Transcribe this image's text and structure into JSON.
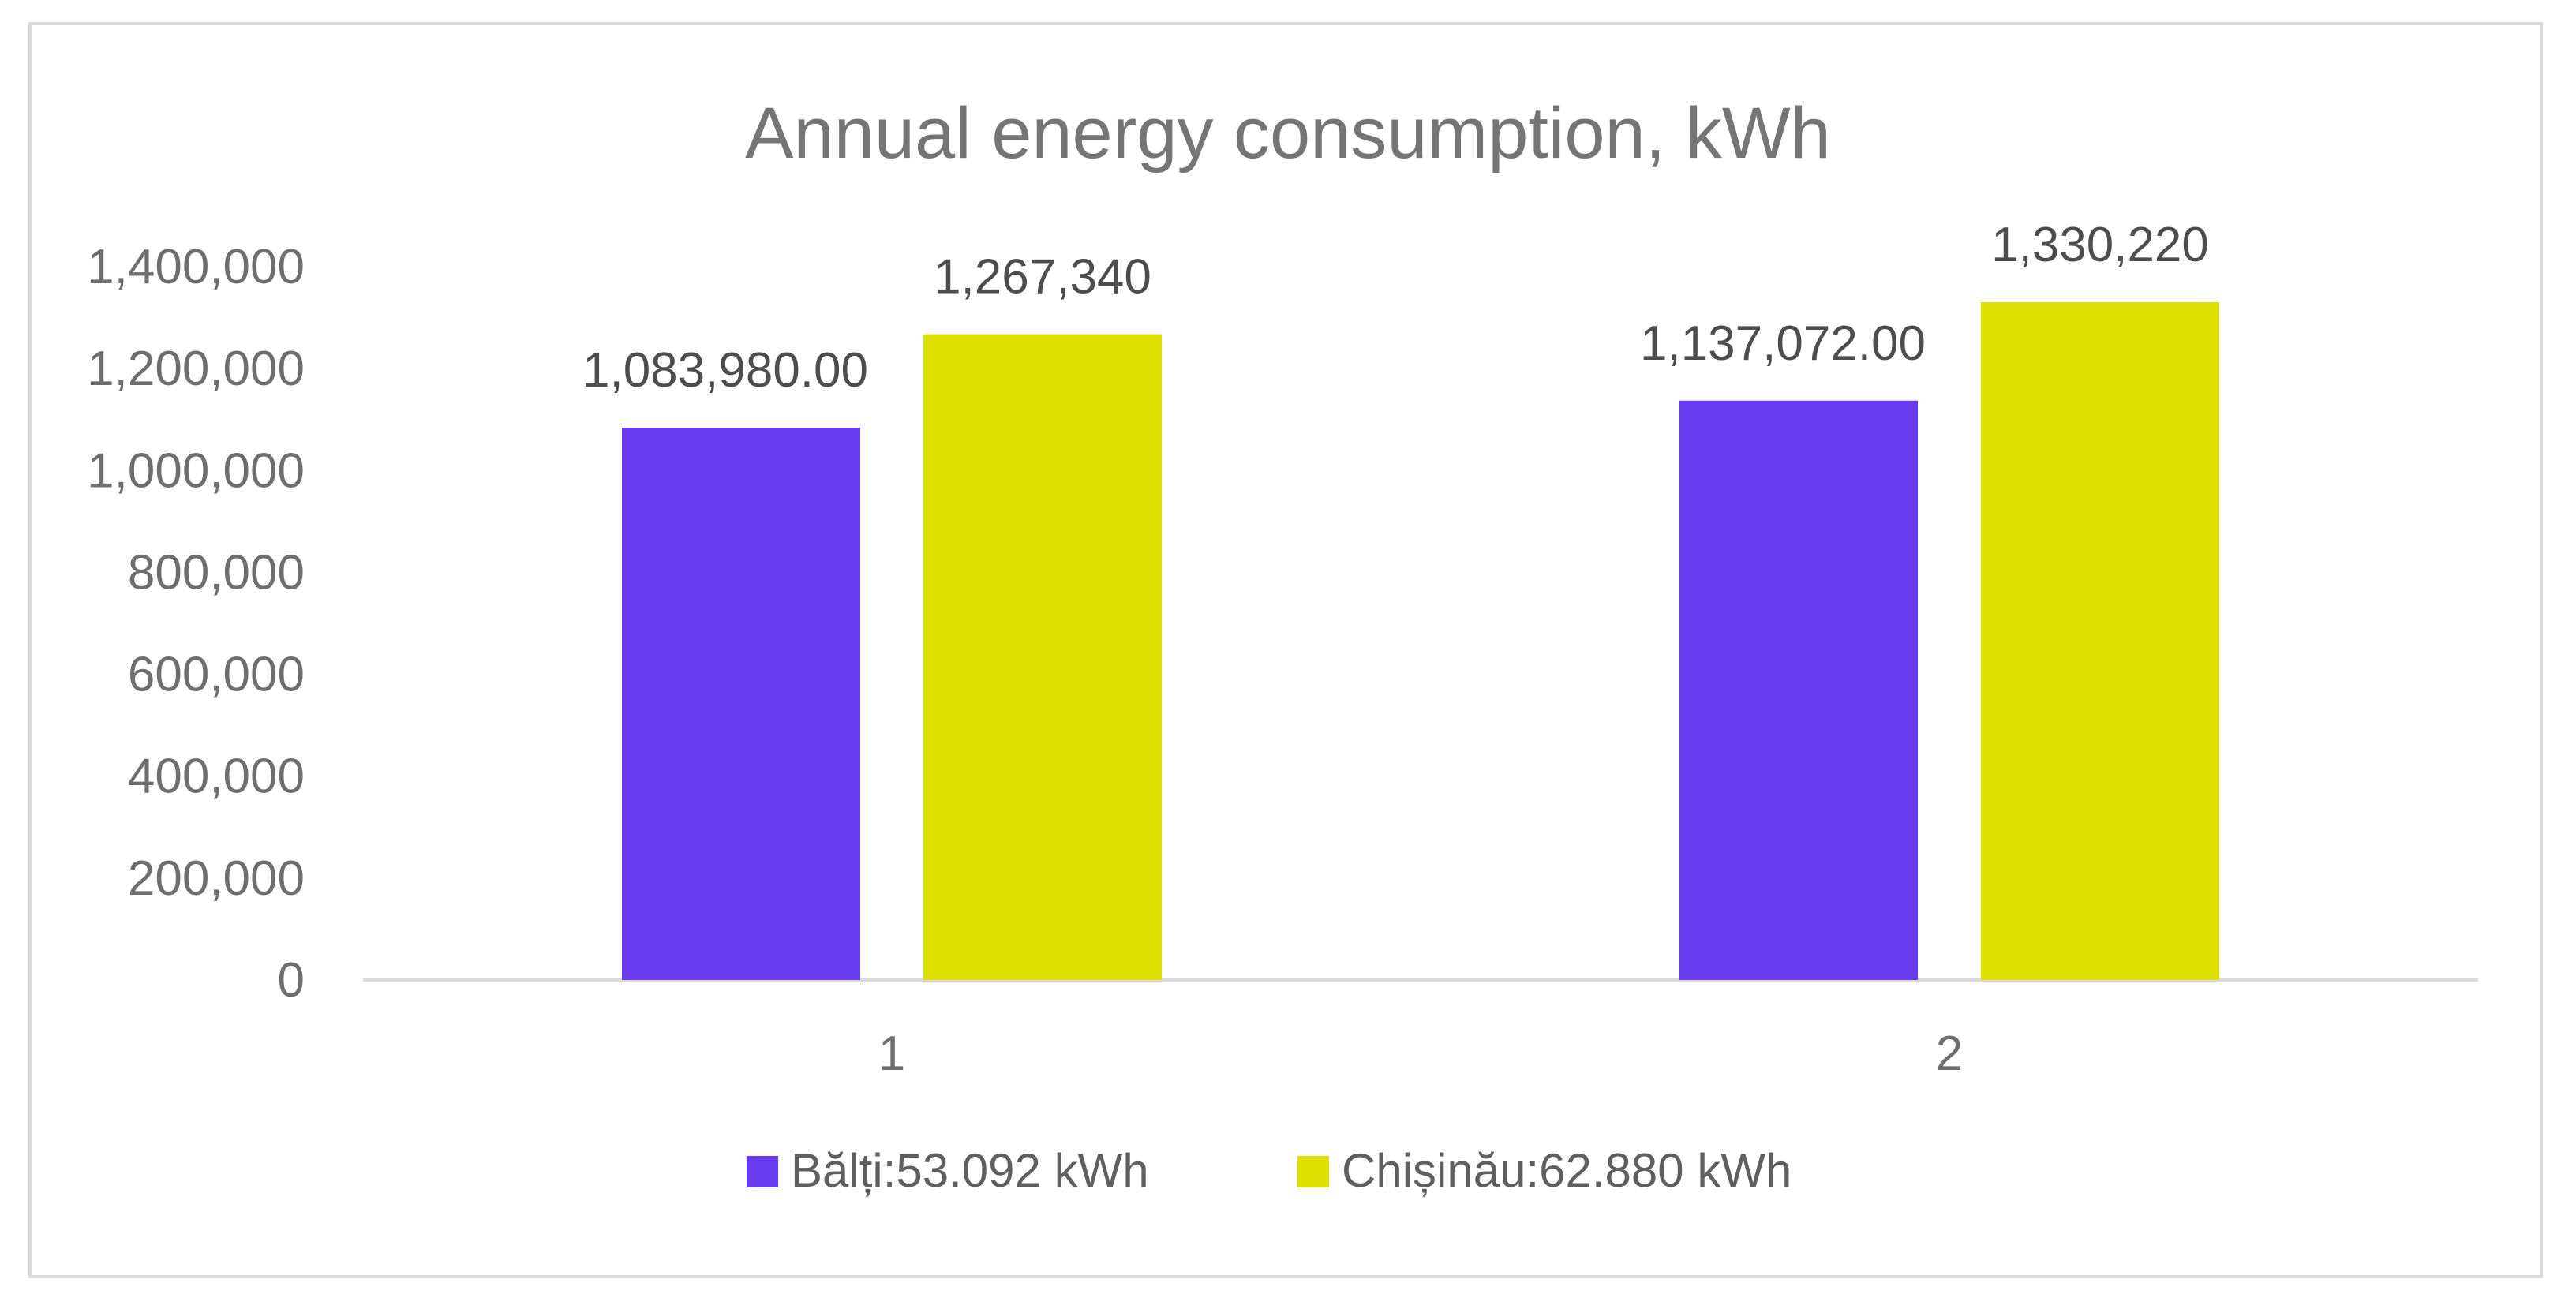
{
  "chart_data": {
    "type": "bar",
    "title": "Annual energy consumption, kWh",
    "xlabel": "",
    "ylabel": "",
    "categories": [
      "1",
      "2"
    ],
    "series": [
      {
        "name": "Bălți:53.092 kWh",
        "color": "#6a3cf0",
        "values": [
          1083980,
          1137072
        ],
        "labels": [
          "1,083,980.00",
          "1,137,072.00"
        ]
      },
      {
        "name": "Chișinău:62.880 kWh",
        "color": "#dde000",
        "values": [
          1267340,
          1330220
        ],
        "labels": [
          "1,267,340",
          "1,330,220"
        ]
      }
    ],
    "ylim": [
      0,
      1400000
    ],
    "yticks": [
      0,
      200000,
      400000,
      600000,
      800000,
      1000000,
      1200000,
      1400000
    ],
    "ytick_labels": [
      "0",
      "200,000",
      "400,000",
      "600,000",
      "800,000",
      "1,000,000",
      "1,200,000",
      "1,400,000"
    ],
    "grid": false,
    "legend_position": "bottom"
  }
}
